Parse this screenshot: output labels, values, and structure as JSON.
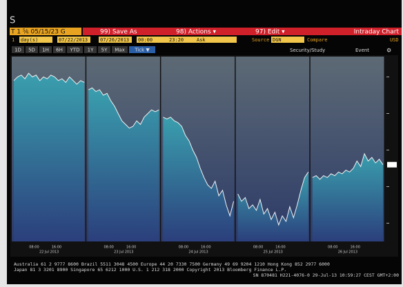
{
  "screen": {
    "letter": "S",
    "ticker_box": "T 1 ⁵⁄₆ 05/15/23 G",
    "menu": [
      "99) Save As",
      "98) Actions ▾",
      "97) Edit ▾"
    ],
    "view_title": "Intraday Chart",
    "params": [
      "1",
      "day(s)",
      "07/22/2013",
      "07/26/2013",
      "00:00",
      "23:20",
      "Ask",
      "Source",
      "DGN",
      "Compare",
      "USD"
    ],
    "ranges": [
      "1D",
      "5D",
      "1H",
      "6H",
      "YTD",
      "1Y",
      "5Y",
      "Max",
      "Tick ▼"
    ],
    "tools": [
      "Security/Study",
      "Event"
    ],
    "footer": [
      "Australia 61 2 9777 8600  Brazil 5511 3048 4500  Europe 44 20 7330 7500  Germany 49 69 9204 1210  Hong Kong 852 2977 6000",
      "Japan 81 3 3201 8900        Singapore 65 6212 1000        U.S. 1 212 318 2000        Copyright 2013 Bloomberg Finance L.P.",
      "SN 870481 H221-4076-0 29-Jul-13 10:59:27 CEST GMT+2:00"
    ]
  },
  "chart_data": {
    "type": "area",
    "ylim": [
      0,
      100
    ],
    "yticks": [
      10,
      30,
      50,
      70,
      90
    ],
    "time_labels": [
      "08:00",
      "16:00"
    ],
    "color": "#3a9fae",
    "panels": [
      {
        "date": "22 Jul 2013",
        "values": [
          88,
          90,
          91,
          89,
          92,
          90,
          91,
          88,
          90,
          89,
          91,
          90,
          88,
          89,
          87,
          90,
          88,
          86,
          88,
          87
        ]
      },
      {
        "date": "23 Jul 2013",
        "values": [
          83,
          84,
          82,
          83,
          80,
          81,
          77,
          74,
          70,
          66,
          64,
          62,
          63,
          66,
          64,
          68,
          70,
          72,
          71,
          72
        ]
      },
      {
        "date": "24 Jul 2013",
        "values": [
          68,
          67,
          68,
          66,
          65,
          63,
          58,
          55,
          50,
          46,
          40,
          35,
          31,
          29,
          33,
          25,
          28,
          20,
          14,
          22
        ]
      },
      {
        "date": "25 Jul 2013",
        "values": [
          26,
          22,
          24,
          18,
          20,
          17,
          23,
          15,
          18,
          12,
          16,
          9,
          14,
          11,
          19,
          13,
          20,
          28,
          35,
          38
        ]
      },
      {
        "date": "26 Jul 2013",
        "values": [
          35,
          36,
          34,
          36,
          35,
          37,
          36,
          38,
          37,
          39,
          38,
          40,
          44,
          41,
          48,
          44,
          46,
          43,
          45,
          42
        ]
      }
    ]
  }
}
